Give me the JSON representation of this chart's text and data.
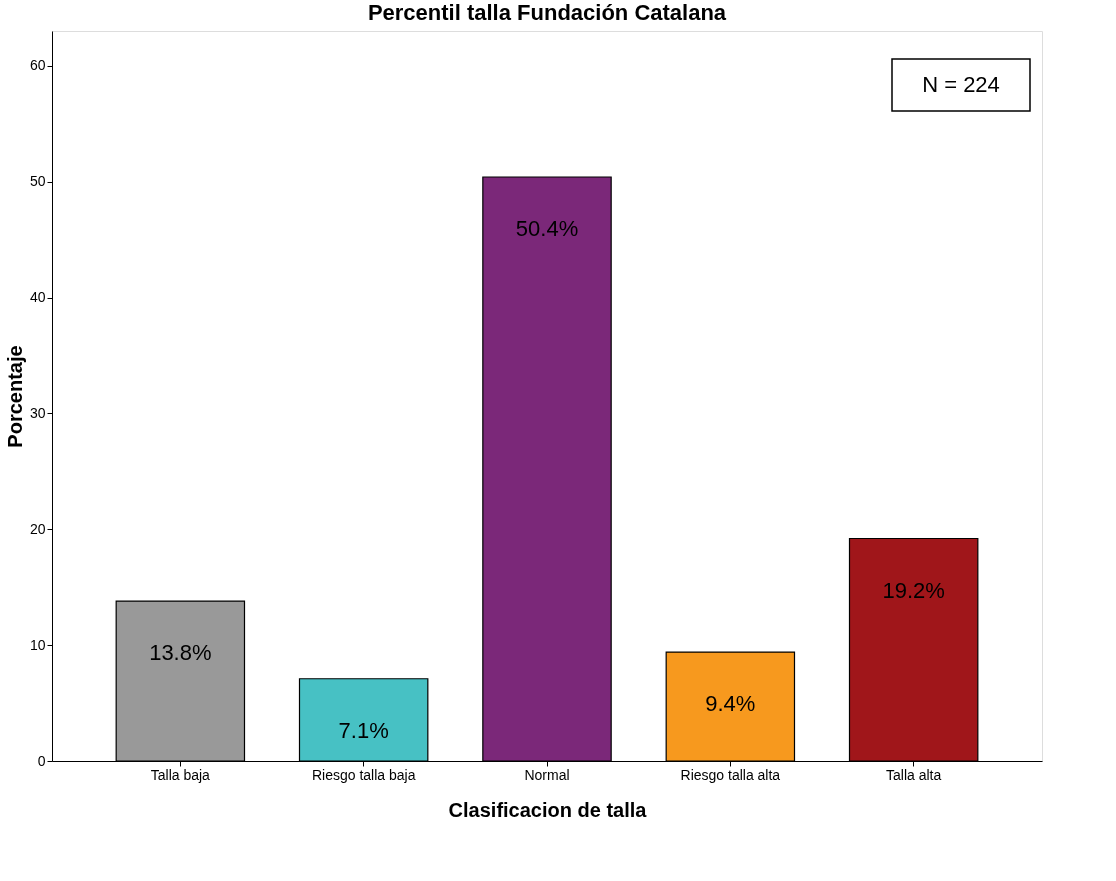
{
  "chart_data": {
    "type": "bar",
    "title": "Percentil talla Fundación Catalana",
    "xlabel": "Clasificacion de talla",
    "ylabel": "Porcentaje",
    "categories": [
      "Talla baja",
      "Riesgo talla baja",
      "Normal",
      "Riesgo talla alta",
      "Talla alta"
    ],
    "values": [
      13.8,
      7.1,
      50.4,
      9.4,
      19.2
    ],
    "colors": [
      "#999999",
      "#47c1c4",
      "#7b2879",
      "#f7991e",
      "#a0161a"
    ],
    "value_labels": [
      "13.8%",
      "7.1%",
      "50.4%",
      "9.4%",
      "19.2%"
    ],
    "ylim": [
      0,
      63
    ],
    "yticks": [
      0,
      10,
      20,
      30,
      40,
      50,
      60
    ],
    "grid": false,
    "annotations": [
      "N = 224"
    ]
  }
}
